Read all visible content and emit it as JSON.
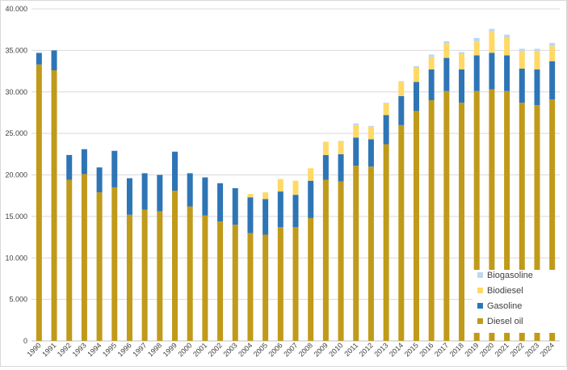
{
  "chart_data": {
    "type": "bar",
    "stacked": true,
    "categories": [
      "1990",
      "1991",
      "1992",
      "1993",
      "1994",
      "1995",
      "1996",
      "1997",
      "1998",
      "1999",
      "2000",
      "2001",
      "2002",
      "2003",
      "2004",
      "2005",
      "2006",
      "2007",
      "2008",
      "2009",
      "2010",
      "2011",
      "2012",
      "2013",
      "2014",
      "2015",
      "2016",
      "2017",
      "2018",
      "2019",
      "2020",
      "2021",
      "2022",
      "2023",
      "2024"
    ],
    "series": [
      {
        "name": "Diesel oil",
        "color": "#C09A1A",
        "values": [
          33300,
          32600,
          19400,
          20100,
          17900,
          18500,
          15200,
          15800,
          15600,
          18100,
          16200,
          15100,
          14400,
          14000,
          13000,
          12800,
          13700,
          13700,
          14800,
          19400,
          19200,
          21100,
          21000,
          23700,
          26000,
          27700,
          29000,
          30100,
          28700,
          30100,
          30300,
          30100,
          28700,
          28400,
          29100
        ]
      },
      {
        "name": "Gasoline",
        "color": "#2E75B6",
        "values": [
          1400,
          2400,
          3000,
          3000,
          3000,
          4400,
          4400,
          4400,
          4400,
          4700,
          4000,
          4600,
          4600,
          4400,
          4300,
          4300,
          4300,
          3900,
          4500,
          3000,
          3300,
          3400,
          3300,
          3500,
          3500,
          3500,
          3700,
          4000,
          4000,
          4300,
          4400,
          4300,
          4100,
          4300,
          4600
        ]
      },
      {
        "name": "Biodiesel",
        "color": "#FFD966",
        "values": [
          0,
          0,
          0,
          0,
          0,
          0,
          0,
          0,
          0,
          0,
          0,
          0,
          0,
          0,
          400,
          800,
          1500,
          1700,
          1500,
          1600,
          1500,
          1500,
          1500,
          1400,
          1700,
          1700,
          1500,
          1700,
          1900,
          1700,
          2500,
          2100,
          2100,
          2200,
          1800
        ]
      },
      {
        "name": "Biogasoline",
        "color": "#BDD7EE",
        "values": [
          0,
          0,
          0,
          0,
          0,
          0,
          0,
          0,
          0,
          0,
          0,
          0,
          0,
          0,
          0,
          0,
          0,
          0,
          0,
          0,
          100,
          200,
          100,
          100,
          100,
          200,
          300,
          300,
          200,
          400,
          400,
          400,
          300,
          300,
          400
        ]
      }
    ],
    "ylim": [
      0,
      40000
    ],
    "yticks": [
      "0",
      "5.000",
      "10.000",
      "15.000",
      "20.000",
      "25.000",
      "30.000",
      "35.000",
      "40.000"
    ],
    "grid": true,
    "legend_placement": "bottom-right",
    "legend_order": [
      "Biogasoline",
      "Biodiesel",
      "Gasoline",
      "Diesel oil"
    ]
  }
}
